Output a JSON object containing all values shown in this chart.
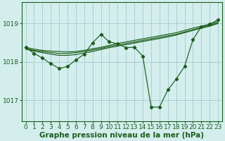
{
  "background_color": "#d4eeee",
  "grid_color": "#aad0d0",
  "line_color": "#1a5e1a",
  "marker_color": "#1a5e1a",
  "xlabel": "Graphe pression niveau de la mer (hPa)",
  "xlabel_fontsize": 7.5,
  "tick_fontsize": 6.5,
  "ytick_labels": [
    1017,
    1018,
    1019
  ],
  "ylim": [
    1016.45,
    1019.55
  ],
  "xlim": [
    -0.5,
    23.5
  ],
  "xticks": [
    0,
    1,
    2,
    3,
    4,
    5,
    6,
    7,
    8,
    9,
    10,
    11,
    12,
    13,
    14,
    15,
    16,
    17,
    18,
    19,
    20,
    21,
    22,
    23
  ],
  "series": [
    {
      "x": [
        0,
        1,
        2,
        3,
        4,
        5,
        6,
        7,
        8,
        9,
        10,
        11,
        12,
        13,
        14,
        15,
        16,
        17,
        18,
        19,
        20,
        21,
        22,
        23
      ],
      "y": [
        1018.38,
        1018.33,
        1018.3,
        1018.28,
        1018.27,
        1018.26,
        1018.27,
        1018.3,
        1018.34,
        1018.38,
        1018.43,
        1018.48,
        1018.52,
        1018.56,
        1018.6,
        1018.64,
        1018.68,
        1018.72,
        1018.76,
        1018.82,
        1018.88,
        1018.93,
        1018.98,
        1019.05
      ],
      "has_markers": false
    },
    {
      "x": [
        0,
        1,
        2,
        3,
        4,
        5,
        6,
        7,
        8,
        9,
        10,
        11,
        12,
        13,
        14,
        15,
        16,
        17,
        18,
        19,
        20,
        21,
        22,
        23
      ],
      "y": [
        1018.35,
        1018.3,
        1018.27,
        1018.24,
        1018.22,
        1018.22,
        1018.24,
        1018.27,
        1018.31,
        1018.35,
        1018.4,
        1018.44,
        1018.48,
        1018.52,
        1018.56,
        1018.6,
        1018.64,
        1018.68,
        1018.72,
        1018.78,
        1018.84,
        1018.9,
        1018.95,
        1019.02
      ],
      "has_markers": false
    },
    {
      "x": [
        0,
        1,
        2,
        3,
        4,
        5,
        6,
        7,
        8,
        9,
        10,
        11,
        12,
        13,
        14,
        15,
        16,
        17,
        18,
        19,
        20,
        21,
        22,
        23
      ],
      "y": [
        1018.33,
        1018.28,
        1018.24,
        1018.2,
        1018.17,
        1018.17,
        1018.19,
        1018.23,
        1018.27,
        1018.32,
        1018.37,
        1018.41,
        1018.45,
        1018.49,
        1018.53,
        1018.57,
        1018.61,
        1018.65,
        1018.7,
        1018.76,
        1018.82,
        1018.88,
        1018.93,
        1019.0
      ],
      "has_markers": false
    },
    {
      "x": [
        0,
        1,
        2,
        3,
        4,
        5,
        6,
        7,
        8,
        9,
        10,
        11,
        12,
        13,
        14,
        15,
        16,
        17,
        18,
        19,
        20,
        21,
        22,
        23
      ],
      "y": [
        1018.38,
        1018.22,
        1018.1,
        1017.95,
        1017.83,
        1017.88,
        1018.05,
        1018.2,
        1018.5,
        1018.72,
        1018.52,
        1018.47,
        1018.37,
        1018.38,
        1018.15,
        1016.82,
        1016.82,
        1017.27,
        1017.55,
        1017.88,
        1018.58,
        1018.92,
        1018.98,
        1019.1
      ],
      "has_markers": true
    }
  ]
}
